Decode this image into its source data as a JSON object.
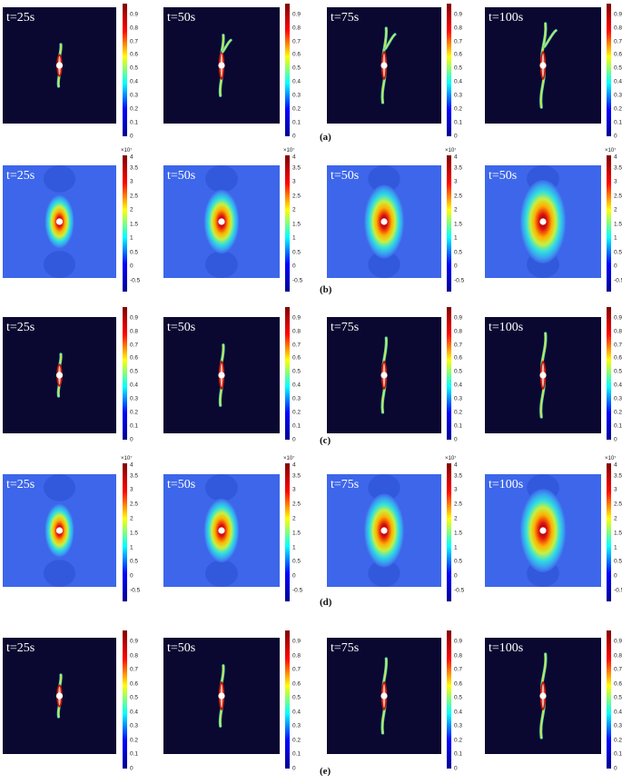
{
  "colors": {
    "damage_bg": "#0a0830",
    "stress_bg": "#3d66ea",
    "jet": [
      "#00008f",
      "#0000ff",
      "#00ffff",
      "#ffff00",
      "#ff0000",
      "#800000"
    ]
  },
  "damage_ticks": [
    "0.9",
    "0.8",
    "0.7",
    "0.6",
    "0.5",
    "0.4",
    "0.3",
    "0.2",
    "0.1",
    "0"
  ],
  "stress_ticks": [
    "3.5",
    "3",
    "2.5",
    "2",
    "1.5",
    "1",
    "0.5",
    "0",
    "-0.5"
  ],
  "stress_ticks_top": "4",
  "stress_multiplier": "×10⁷",
  "rows": [
    {
      "label": "(a)",
      "type": "damage",
      "times": [
        "t=25s",
        "t=50s",
        "t=75s",
        "t=100s"
      ]
    },
    {
      "label": "(b)",
      "type": "stress",
      "times": [
        "t=25s",
        "t=50s",
        "t=50s",
        "t=50s"
      ]
    },
    {
      "label": "(c)",
      "type": "damage",
      "times": [
        "t=25s",
        "t=50s",
        "t=75s",
        "t=100s"
      ]
    },
    {
      "label": "(d)",
      "type": "stress",
      "times": [
        "t=25s",
        "t=50s",
        "t=75s",
        "t=100s"
      ]
    },
    {
      "label": "(e)",
      "type": "damage",
      "times": [
        "t=25s",
        "t=50s",
        "t=75s",
        "t=100s"
      ]
    }
  ]
}
